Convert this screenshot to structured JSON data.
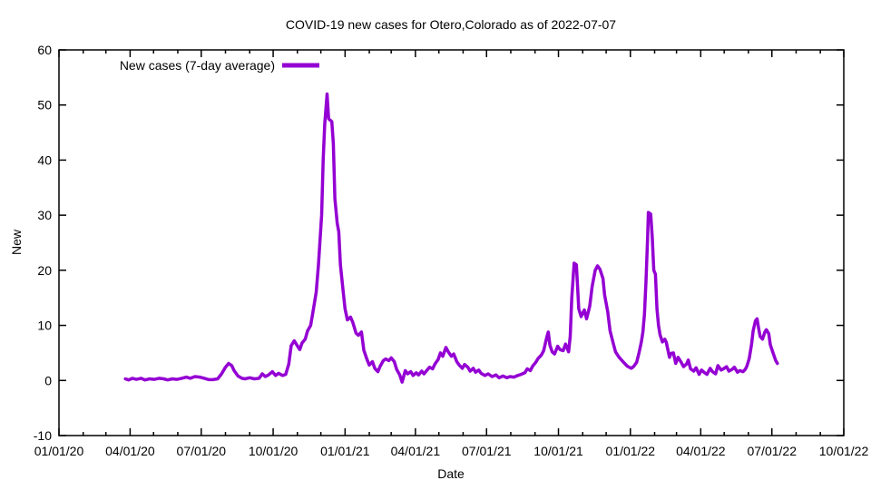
{
  "chart_data": {
    "type": "line",
    "title": "COVID-19 new cases for Otero,Colorado as of 2022-07-07",
    "xlabel": "Date",
    "ylabel": "New",
    "ylim": [
      -10,
      60
    ],
    "x_epoch": "2020-01-01",
    "x_range_days": [
      0,
      1004
    ],
    "grid": false,
    "legend_position": "top-left-inside",
    "y_ticks": [
      -10,
      0,
      10,
      20,
      30,
      40,
      50,
      60
    ],
    "x_ticks": [
      {
        "day": 0,
        "label": "01/01/20"
      },
      {
        "day": 91,
        "label": "04/01/20"
      },
      {
        "day": 182,
        "label": "07/01/20"
      },
      {
        "day": 274,
        "label": "10/01/20"
      },
      {
        "day": 366,
        "label": "01/01/21"
      },
      {
        "day": 456,
        "label": "04/01/21"
      },
      {
        "day": 547,
        "label": "07/01/21"
      },
      {
        "day": 639,
        "label": "10/01/21"
      },
      {
        "day": 731,
        "label": "01/01/22"
      },
      {
        "day": 821,
        "label": "04/01/22"
      },
      {
        "day": 912,
        "label": "07/01/22"
      },
      {
        "day": 1004,
        "label": "10/01/22"
      }
    ],
    "x_minor_tick_unit": "month",
    "series": [
      {
        "name": "New cases (7-day average)",
        "color": "#9400d3",
        "points_format": [
          "days_since_2020_01_01",
          "new_cases_7day_avg"
        ],
        "points": [
          [
            85,
            0.3
          ],
          [
            89,
            0.1
          ],
          [
            94,
            0.4
          ],
          [
            99,
            0.2
          ],
          [
            105,
            0.4
          ],
          [
            110,
            0.1
          ],
          [
            116,
            0.3
          ],
          [
            122,
            0.2
          ],
          [
            128,
            0.4
          ],
          [
            134,
            0.3
          ],
          [
            139,
            0.1
          ],
          [
            145,
            0.3
          ],
          [
            151,
            0.2
          ],
          [
            157,
            0.4
          ],
          [
            163,
            0.6
          ],
          [
            168,
            0.4
          ],
          [
            174,
            0.7
          ],
          [
            180,
            0.6
          ],
          [
            186,
            0.4
          ],
          [
            192,
            0.15
          ],
          [
            197,
            0.15
          ],
          [
            203,
            0.3
          ],
          [
            208,
            1.2
          ],
          [
            213,
            2.4
          ],
          [
            217,
            3.1
          ],
          [
            221,
            2.7
          ],
          [
            224,
            1.8
          ],
          [
            229,
            0.8
          ],
          [
            234,
            0.4
          ],
          [
            238,
            0.3
          ],
          [
            244,
            0.5
          ],
          [
            250,
            0.3
          ],
          [
            256,
            0.4
          ],
          [
            260,
            1.2
          ],
          [
            264,
            0.7
          ],
          [
            268,
            1.0
          ],
          [
            273,
            1.6
          ],
          [
            277,
            0.9
          ],
          [
            281,
            1.3
          ],
          [
            286,
            0.9
          ],
          [
            290,
            1.1
          ],
          [
            294,
            3.0
          ],
          [
            297,
            6.3
          ],
          [
            301,
            7.2
          ],
          [
            304,
            6.5
          ],
          [
            308,
            5.6
          ],
          [
            311,
            6.8
          ],
          [
            315,
            7.5
          ],
          [
            318,
            9.0
          ],
          [
            322,
            10.0
          ],
          [
            325,
            12.5
          ],
          [
            329,
            16.0
          ],
          [
            332,
            21.0
          ],
          [
            336,
            30.0
          ],
          [
            338,
            40.0
          ],
          [
            340,
            46.5
          ],
          [
            343,
            52.0
          ],
          [
            345,
            47.5
          ],
          [
            349,
            47.0
          ],
          [
            351,
            43.0
          ],
          [
            353,
            33.0
          ],
          [
            356,
            28.5
          ],
          [
            358,
            27.0
          ],
          [
            360,
            21.0
          ],
          [
            363,
            17.0
          ],
          [
            366,
            13.0
          ],
          [
            369,
            11.0
          ],
          [
            373,
            11.5
          ],
          [
            376,
            10.5
          ],
          [
            380,
            8.6
          ],
          [
            383,
            8.2
          ],
          [
            387,
            8.8
          ],
          [
            390,
            5.5
          ],
          [
            394,
            3.8
          ],
          [
            397,
            2.8
          ],
          [
            401,
            3.4
          ],
          [
            404,
            2.2
          ],
          [
            408,
            1.6
          ],
          [
            411,
            2.6
          ],
          [
            415,
            3.6
          ],
          [
            418,
            3.9
          ],
          [
            422,
            3.6
          ],
          [
            425,
            4.1
          ],
          [
            429,
            3.4
          ],
          [
            432,
            2.0
          ],
          [
            436,
            1.0
          ],
          [
            439,
            -0.3
          ],
          [
            443,
            1.8
          ],
          [
            446,
            1.2
          ],
          [
            450,
            1.6
          ],
          [
            453,
            0.9
          ],
          [
            457,
            1.4
          ],
          [
            460,
            1.0
          ],
          [
            464,
            1.7
          ],
          [
            467,
            1.2
          ],
          [
            471,
            1.9
          ],
          [
            474,
            2.4
          ],
          [
            478,
            2.1
          ],
          [
            481,
            3.0
          ],
          [
            485,
            3.8
          ],
          [
            488,
            5.0
          ],
          [
            491,
            4.4
          ],
          [
            495,
            6.0
          ],
          [
            498,
            5.2
          ],
          [
            502,
            4.4
          ],
          [
            505,
            4.8
          ],
          [
            509,
            3.4
          ],
          [
            512,
            2.8
          ],
          [
            516,
            2.2
          ],
          [
            519,
            2.9
          ],
          [
            523,
            2.4
          ],
          [
            526,
            1.7
          ],
          [
            530,
            2.2
          ],
          [
            533,
            1.5
          ],
          [
            537,
            1.9
          ],
          [
            540,
            1.3
          ],
          [
            545,
            0.9
          ],
          [
            549,
            1.2
          ],
          [
            554,
            0.7
          ],
          [
            559,
            1.0
          ],
          [
            563,
            0.5
          ],
          [
            568,
            0.8
          ],
          [
            573,
            0.5
          ],
          [
            577,
            0.7
          ],
          [
            582,
            0.6
          ],
          [
            587,
            0.9
          ],
          [
            591,
            1.1
          ],
          [
            596,
            1.4
          ],
          [
            599,
            2.1
          ],
          [
            603,
            1.8
          ],
          [
            606,
            2.6
          ],
          [
            610,
            3.3
          ],
          [
            613,
            4.0
          ],
          [
            617,
            4.6
          ],
          [
            620,
            5.4
          ],
          [
            624,
            7.8
          ],
          [
            626,
            8.8
          ],
          [
            628,
            6.4
          ],
          [
            631,
            5.2
          ],
          [
            634,
            4.8
          ],
          [
            638,
            6.2
          ],
          [
            641,
            5.6
          ],
          [
            645,
            5.4
          ],
          [
            648,
            6.6
          ],
          [
            652,
            5.2
          ],
          [
            654,
            8.0
          ],
          [
            656,
            15.0
          ],
          [
            659,
            21.3
          ],
          [
            662,
            21.0
          ],
          [
            665,
            13.0
          ],
          [
            668,
            11.6
          ],
          [
            672,
            12.8
          ],
          [
            675,
            11.2
          ],
          [
            679,
            13.5
          ],
          [
            682,
            17.0
          ],
          [
            686,
            20.0
          ],
          [
            689,
            20.8
          ],
          [
            692,
            20.2
          ],
          [
            696,
            18.5
          ],
          [
            698,
            15.5
          ],
          [
            702,
            12.5
          ],
          [
            705,
            9.0
          ],
          [
            709,
            6.8
          ],
          [
            712,
            5.2
          ],
          [
            716,
            4.3
          ],
          [
            719,
            3.8
          ],
          [
            723,
            3.2
          ],
          [
            727,
            2.6
          ],
          [
            732,
            2.2
          ],
          [
            735,
            2.5
          ],
          [
            739,
            3.3
          ],
          [
            742,
            5.0
          ],
          [
            745,
            7.0
          ],
          [
            747,
            8.8
          ],
          [
            749,
            12.0
          ],
          [
            751,
            18.0
          ],
          [
            753,
            26.0
          ],
          [
            754,
            30.5
          ],
          [
            757,
            30.2
          ],
          [
            759,
            26.0
          ],
          [
            761,
            20.0
          ],
          [
            763,
            19.3
          ],
          [
            765,
            13.0
          ],
          [
            767,
            10.0
          ],
          [
            769,
            8.3
          ],
          [
            772,
            7.0
          ],
          [
            775,
            7.5
          ],
          [
            777,
            6.9
          ],
          [
            781,
            4.2
          ],
          [
            783,
            4.9
          ],
          [
            786,
            5.0
          ],
          [
            789,
            3.1
          ],
          [
            792,
            4.2
          ],
          [
            796,
            3.3
          ],
          [
            799,
            2.5
          ],
          [
            803,
            3.0
          ],
          [
            805,
            3.7
          ],
          [
            808,
            2.1
          ],
          [
            812,
            1.7
          ],
          [
            815,
            2.3
          ],
          [
            819,
            1.1
          ],
          [
            822,
            1.9
          ],
          [
            826,
            1.4
          ],
          [
            829,
            1.1
          ],
          [
            833,
            2.2
          ],
          [
            836,
            1.6
          ],
          [
            840,
            1.2
          ],
          [
            843,
            2.7
          ],
          [
            847,
            1.9
          ],
          [
            850,
            2.1
          ],
          [
            854,
            2.5
          ],
          [
            857,
            1.7
          ],
          [
            861,
            2.0
          ],
          [
            864,
            2.4
          ],
          [
            868,
            1.5
          ],
          [
            871,
            1.8
          ],
          [
            875,
            1.6
          ],
          [
            878,
            2.0
          ],
          [
            880,
            2.6
          ],
          [
            883,
            4.0
          ],
          [
            886,
            6.5
          ],
          [
            888,
            9.0
          ],
          [
            891,
            10.8
          ],
          [
            893,
            11.2
          ],
          [
            895,
            9.5
          ],
          [
            897,
            8.0
          ],
          [
            900,
            7.5
          ],
          [
            903,
            8.8
          ],
          [
            905,
            9.2
          ],
          [
            908,
            8.5
          ],
          [
            910,
            6.5
          ],
          [
            913,
            5.2
          ],
          [
            915,
            4.4
          ],
          [
            917,
            3.6
          ],
          [
            919,
            3.1
          ]
        ]
      }
    ]
  },
  "colors": {
    "line": "#9400d3",
    "text": "#000000",
    "background": "#ffffff",
    "border": "#000000"
  }
}
